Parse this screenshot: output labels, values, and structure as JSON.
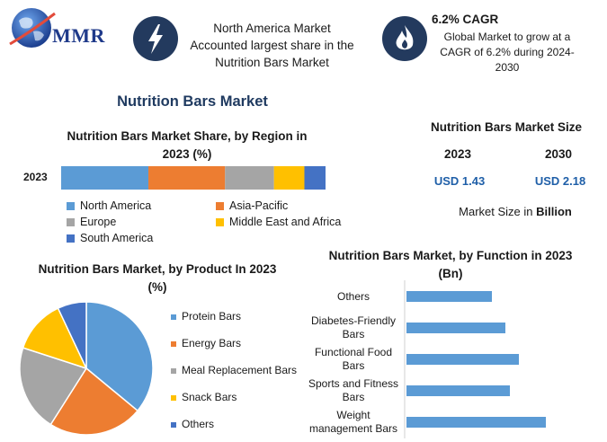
{
  "header": {
    "logo_text": "MMR",
    "fact1": {
      "icon": "lightning-bolt-icon",
      "text": "North America Market Accounted largest share in the Nutrition Bars Market"
    },
    "fact2": {
      "icon": "flame-icon",
      "title": "6.2% CAGR",
      "text": "Global Market to grow at a CAGR of 6.2% during 2024-2030"
    }
  },
  "main_title": "Nutrition Bars Market",
  "market_size": {
    "title": "Nutrition Bars Market Size",
    "years": [
      "2023",
      "2030"
    ],
    "values": [
      "USD 1.43",
      "USD 2.18"
    ],
    "unit_prefix": "Market Size in",
    "unit_bold": "Billion"
  },
  "colors": {
    "blue": "#5b9bd5",
    "orange": "#ed7d31",
    "gray": "#a5a5a5",
    "yellow": "#ffc000",
    "dark_blue": "#4472c4",
    "icon_bg": "#233a5e",
    "value_text": "#1f5fa8"
  },
  "chart_data": [
    {
      "type": "bar",
      "orientation": "horizontal",
      "stacked": true,
      "title": "Nutrition Bars Market Share, by Region in 2023 (%)",
      "categories": [
        "2023"
      ],
      "series": [
        {
          "name": "North America",
          "values": [
            33
          ]
        },
        {
          "name": "Asia-Pacific",
          "values": [
            29
          ]
        },
        {
          "name": "Europe",
          "values": [
            18.5
          ]
        },
        {
          "name": "Middle East and Africa",
          "values": [
            11.5
          ]
        },
        {
          "name": "South America",
          "values": [
            8
          ]
        }
      ],
      "legend": "bottom"
    },
    {
      "type": "pie",
      "title": "Nutrition Bars Market, by Product In 2023 (%)",
      "labels": [
        "Protein Bars",
        "Energy Bars",
        "Meal Replacement Bars",
        "Snack Bars",
        "Others"
      ],
      "values": [
        36,
        23,
        21,
        13,
        7
      ],
      "legend": "right"
    },
    {
      "type": "bar",
      "orientation": "horizontal",
      "title": "Nutrition Bars Market, by Function in 2023 (Bn)",
      "categories": [
        "Others",
        "Diabetes-Friendly Bars",
        "Functional Food Bars",
        "Sports and Fitness Bars",
        "Weight management Bars"
      ],
      "values": [
        0.19,
        0.22,
        0.25,
        0.23,
        0.31
      ],
      "xlim": [
        0,
        0.4
      ]
    }
  ]
}
